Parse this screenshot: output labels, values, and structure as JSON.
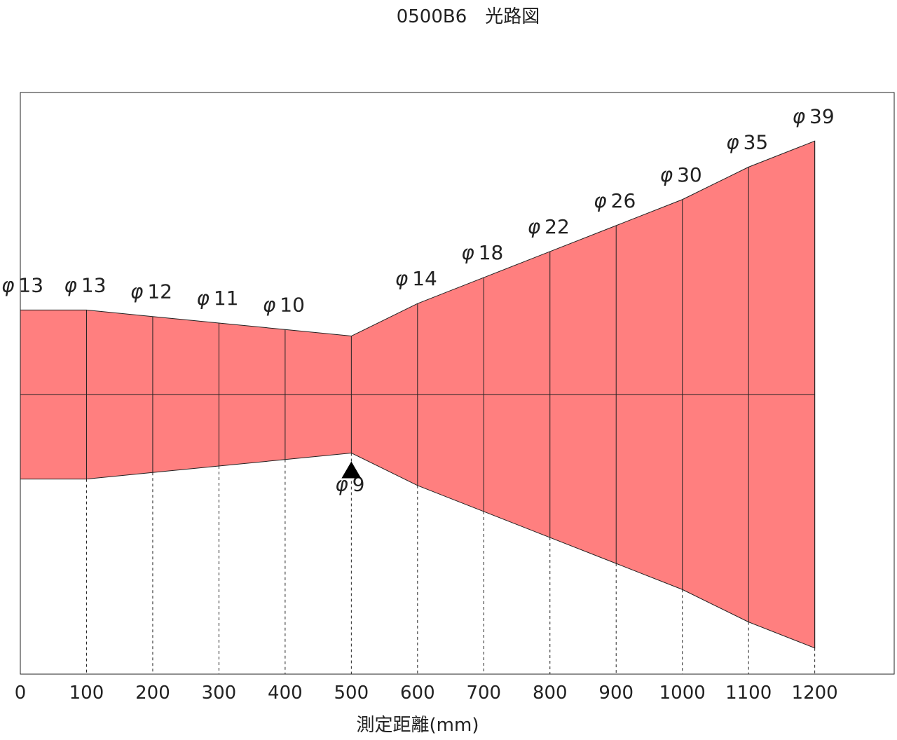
{
  "title": "0500B6　光路図",
  "xlabel": "測定距離(mm)",
  "diameter_prefix": "φ",
  "colors": {
    "beam_fill": "#ff7f7f",
    "line": "#222222",
    "background": "#ffffff"
  },
  "chart_data": {
    "type": "diagram",
    "x": [
      0,
      100,
      200,
      300,
      400,
      500,
      600,
      700,
      800,
      900,
      1000,
      1100,
      1200
    ],
    "x_tick_labels": [
      "0",
      "100",
      "200",
      "300",
      "400",
      "500",
      "600",
      "700",
      "800",
      "900",
      "1000",
      "1100",
      "1200"
    ],
    "diameters_mm": [
      13,
      13,
      12,
      11,
      10,
      9,
      14,
      18,
      22,
      26,
      30,
      35,
      39
    ],
    "diameter_labels": [
      "13",
      "13",
      "12",
      "11",
      "10",
      "9",
      "14",
      "18",
      "22",
      "26",
      "30",
      "35",
      "39"
    ],
    "focus_distance_mm": 500,
    "focus_marker": "triangle-up"
  }
}
